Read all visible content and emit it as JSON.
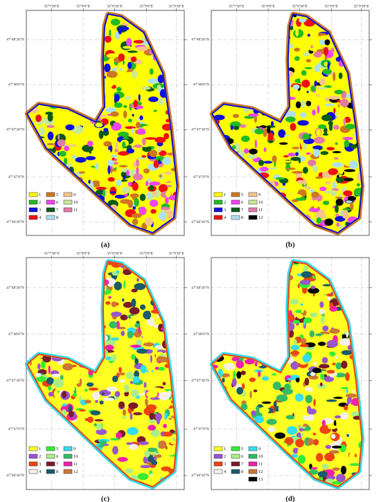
{
  "panels": [
    {
      "label": "(a)",
      "x_labels": [
        "35°7'30\"E",
        "35°8'0\"E",
        "35°8'30\"E",
        "35°9'0\"E",
        "35°9'30\"E"
      ],
      "y_labels": [
        "47°48'30\"N",
        "47°48'0\"N",
        "47°47'30\"N",
        "47°47'0\"N",
        "47°46'30\"N"
      ],
      "legend": [
        {
          "label": "1",
          "color": "#ffff00"
        },
        {
          "label": "2",
          "color": "#22bb22"
        },
        {
          "label": "3",
          "color": "#1010dd"
        },
        {
          "label": "4",
          "color": "#ee1111"
        },
        {
          "label": "5",
          "color": "#cc7722"
        },
        {
          "label": "6",
          "color": "#ee44ee"
        },
        {
          "label": "7",
          "color": "#0a5a1a"
        },
        {
          "label": "8",
          "color": "#aee0ee"
        },
        {
          "label": "9",
          "color": "#f5c48a"
        },
        {
          "label": "10",
          "color": "#c8e89a"
        },
        {
          "label": "11",
          "color": "#e47aa8"
        }
      ]
    },
    {
      "label": "(b)",
      "x_labels": [
        "35°7'30\"E",
        "35°8'0\"E",
        "35°8'30\"E",
        "35°9'0\"E",
        "35°9'30\"E"
      ],
      "y_labels": [
        "47°48'30\"N",
        "47°48'0\"N",
        "47°47'30\"N",
        "47°47'0\"N",
        "47°46'30\"N"
      ],
      "legend": [
        {
          "label": "1",
          "color": "#ffff00"
        },
        {
          "label": "2",
          "color": "#22bb22"
        },
        {
          "label": "3",
          "color": "#1010dd"
        },
        {
          "label": "4",
          "color": "#ee1111"
        },
        {
          "label": "5",
          "color": "#cc7722"
        },
        {
          "label": "6",
          "color": "#ee44ee"
        },
        {
          "label": "7",
          "color": "#0a5a1a"
        },
        {
          "label": "8",
          "color": "#aee0ee"
        },
        {
          "label": "9",
          "color": "#f5c48a"
        },
        {
          "label": "10",
          "color": "#c8e89a"
        },
        {
          "label": "11",
          "color": "#e47aa8"
        },
        {
          "label": "12",
          "color": "#000000"
        }
      ]
    },
    {
      "label": "(c)",
      "x_labels": [
        "35°7'30\"E",
        "35°8'0\"E",
        "35°8'30\"E",
        "35°9'0\"E",
        "35°9'30\"E"
      ],
      "y_labels": [
        "47°48'30\"N",
        "47°48'0\"N",
        "47°47'30\"N",
        "47°47'0\"N",
        "47°46'30\"N"
      ],
      "legend": [
        {
          "label": "1",
          "color": "#ffff22"
        },
        {
          "label": "2",
          "color": "#9955cc"
        },
        {
          "label": "3",
          "color": "#ee4411"
        },
        {
          "label": "4",
          "color": "#f4f0e8"
        },
        {
          "label": "5",
          "color": "#33ee33"
        },
        {
          "label": "6",
          "color": "#aaee88"
        },
        {
          "label": "7",
          "color": "#7a1a2a"
        },
        {
          "label": "8",
          "color": "#1a5a6a"
        },
        {
          "label": "9",
          "color": "#33ddee"
        },
        {
          "label": "10",
          "color": "#33bb66"
        },
        {
          "label": "11",
          "color": "#ee22aa"
        },
        {
          "label": "12",
          "color": "#cc7733"
        }
      ]
    },
    {
      "label": "(d)",
      "y_labels": [
        "47°48'30\"N",
        "47°48'0\"N",
        "47°47'30\"N",
        "47°47'0\"N",
        "47°46'30\"N"
      ],
      "legend": [
        {
          "label": "1",
          "color": "#ffff22"
        },
        {
          "label": "2",
          "color": "#9955cc"
        },
        {
          "label": "3",
          "color": "#ee4411"
        },
        {
          "label": "4",
          "color": "#f4f0e8"
        },
        {
          "label": "5",
          "color": "#33ee33"
        },
        {
          "label": "6",
          "color": "#aaee88"
        },
        {
          "label": "7",
          "color": "#7a1a2a"
        },
        {
          "label": "8",
          "color": "#1a5a6a"
        },
        {
          "label": "9",
          "color": "#33ddee"
        },
        {
          "label": "10",
          "color": "#33bb66"
        },
        {
          "label": "11",
          "color": "#ee22aa"
        },
        {
          "label": "12",
          "color": "#cc7733"
        },
        {
          "label": "13",
          "color": "#000000"
        }
      ]
    }
  ]
}
